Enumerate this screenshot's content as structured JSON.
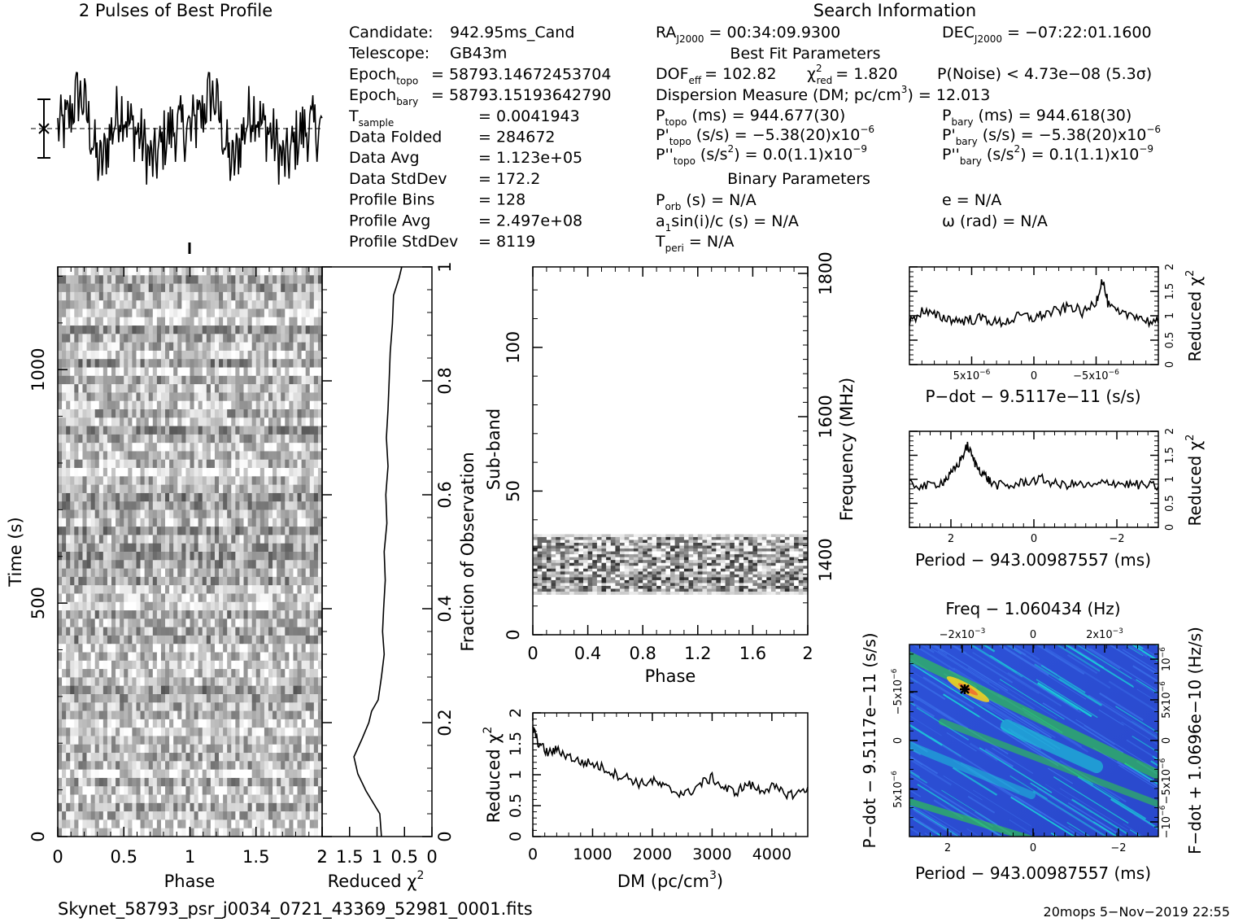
{
  "header": {
    "profile_title": "2 Pulses of Best Profile",
    "search_title": "Search Information"
  },
  "info_left": [
    {
      "label": "Candidate:",
      "value": "942.95ms_Cand"
    },
    {
      "label": "Telescope:",
      "value": "GB43m"
    },
    {
      "label": "Epoch",
      "sub": "topo",
      "value": "= 58793.14672453704"
    },
    {
      "label": "Epoch",
      "sub": "bary",
      "value": "= 58793.15193642790"
    },
    {
      "label": "T",
      "sub": "sample",
      "value": "=   0.0041943"
    },
    {
      "label": "Data Folded",
      "value": "=   284672"
    },
    {
      "label": "Data Avg",
      "value": "=   1.123e+05"
    },
    {
      "label": "Data StdDev",
      "value": "=   172.2"
    },
    {
      "label": "Profile Bins",
      "value": "=   128"
    },
    {
      "label": "Profile Avg",
      "value": "=   2.497e+08"
    },
    {
      "label": "Profile StdDev",
      "value": "=   8119"
    }
  ],
  "info_mid": {
    "ra": "RA",
    "ra_sub": "J2000",
    "ra_value": "= 00:34:09.9300",
    "best_fit": "Best Fit Parameters",
    "dof": "DOF",
    "dof_sub": "eff",
    "dof_value": "= 102.82",
    "chi": "χ",
    "chi_sup": "2",
    "chi_sub": "red",
    "chi_value": "= 1.820",
    "dm_line": "Dispersion Measure (DM; pc/cm",
    "dm_sup": "3",
    "dm_value": ") = 12.013",
    "ptopo": "P",
    "ptopo_sub": "topo",
    "ptopo_value": "(ms) =  944.677(30)",
    "pdtopo": "P'",
    "pdtopo_sub": "topo",
    "pdtopo_value": "(s/s) = −5.38(20)x10",
    "pdtopo_exp": "−6",
    "pddtopo": "P''",
    "pddtopo_sub": "topo",
    "pddtopo_value": "(s/s",
    "pddtopo_sup": "2",
    "pddtopo_value2": ") = 0.0(1.1)x10",
    "pddtopo_exp": "−9",
    "binary": "Binary Parameters",
    "porb": "P",
    "porb_sub": "orb",
    "porb_value": "(s) = N/A",
    "a1": "a",
    "a1_sub": "1",
    "a1_value": "sin(i)/c (s) = N/A",
    "tperi": "T",
    "tperi_sub": "peri",
    "tperi_value": "= N/A"
  },
  "info_right": {
    "dec": "DEC",
    "dec_sub": "J2000",
    "dec_value": "= −07:22:01.1600",
    "pnoise": "P(Noise) < 4.73e−08  (5.3σ)",
    "pbary": "P",
    "pbary_sub": "bary",
    "pbary_value": "(ms) =  944.618(30)",
    "pdbary": "P'",
    "pdbary_sub": "bary",
    "pdbary_value": "(s/s) = −5.38(20)x10",
    "pdbary_exp": "−6",
    "pddbary": "P''",
    "pddbary_sub": "bary",
    "pddbary_value": "(s/s",
    "pddbary_sup": "2",
    "pddbary_value2": ") =  0.1(1.1)x10",
    "pddbary_exp": "−9",
    "ecc": "e = N/A",
    "omega": "ω (rad) = N/A"
  },
  "footer": {
    "filename": "Skynet_58793_psr_j0034_0721_43369_52981_0001.fits",
    "stamp": "20mops   5−Nov−2019 22:55"
  },
  "chart_data": [
    {
      "name": "profile",
      "type": "line",
      "title": "2 Pulses of Best Profile",
      "x_range": [
        0,
        2
      ],
      "bins": 128,
      "pulses": 2
    },
    {
      "name": "time-phase",
      "type": "heatmap",
      "xlabel": "Phase",
      "ylabel": "Time (s)",
      "xlim": [
        0,
        2
      ],
      "ylim": [
        0,
        1220
      ],
      "xticks": [
        "0",
        "0.5",
        "1",
        "1.5",
        "2"
      ],
      "yticks": [
        "0",
        "500",
        "1000"
      ],
      "right_label": "Fraction of Observation",
      "right_ticks": [
        "0",
        "0.2",
        "0.4",
        "0.6",
        "0.8",
        "1"
      ]
    },
    {
      "name": "time-chi2",
      "type": "line",
      "xlabel": "Reduced χ",
      "xlabel_sup": "2",
      "xlim": [
        2,
        0
      ],
      "xticks": [
        "2",
        "1.5",
        "1",
        "0.5",
        "0"
      ],
      "fraction": [
        0.0,
        0.04,
        0.08,
        0.11,
        0.14,
        0.17,
        0.2,
        0.22,
        0.24,
        0.28,
        0.32,
        0.36,
        0.4,
        0.45,
        0.5,
        0.55,
        0.6,
        0.65,
        0.7,
        0.75,
        0.8,
        0.85,
        0.9,
        0.95,
        0.98,
        1.0
      ],
      "chi2": [
        0.92,
        0.95,
        1.2,
        1.35,
        1.42,
        1.28,
        1.15,
        1.1,
        0.98,
        0.92,
        0.87,
        0.9,
        0.88,
        0.85,
        0.87,
        0.82,
        0.84,
        0.8,
        0.83,
        0.8,
        0.78,
        0.76,
        0.72,
        0.7,
        0.6,
        0.55
      ]
    },
    {
      "name": "subband-phase",
      "type": "heatmap",
      "xlabel": "Phase",
      "ylabel": "Sub-band",
      "xlim": [
        0,
        2
      ],
      "ylim": [
        0,
        128
      ],
      "xticks": [
        "0",
        "0.4",
        "0.8",
        "1.2",
        "1.6",
        "2"
      ],
      "yticks": [
        "0",
        "50",
        "100"
      ],
      "right_label": "Frequency (MHz)",
      "right_ticks": [
        "1400",
        "1600",
        "1800"
      ],
      "band_subbands": [
        14,
        35
      ]
    },
    {
      "name": "dm-chi2",
      "type": "line",
      "xlabel": "DM (pc/cm",
      "xlabel_sup": "3",
      "xlabel_end": ")",
      "ylabel": "Reduced χ",
      "ylabel_sup": "2",
      "xlim": [
        0,
        4600
      ],
      "ylim": [
        0,
        2
      ],
      "xticks": [
        "0",
        "1000",
        "2000",
        "3000",
        "4000"
      ],
      "yticks": [
        "0",
        "0.5",
        "1",
        "1.5",
        "2"
      ],
      "x": [
        0,
        100,
        250,
        400,
        600,
        800,
        1000,
        1200,
        1400,
        1600,
        1800,
        2000,
        2200,
        2400,
        2600,
        2800,
        3000,
        3200,
        3400,
        3600,
        3800,
        4000,
        4200,
        4400,
        4600
      ],
      "y": [
        1.75,
        1.5,
        1.35,
        1.4,
        1.3,
        1.2,
        1.18,
        1.1,
        1.0,
        0.95,
        0.85,
        0.9,
        0.8,
        0.72,
        0.7,
        0.85,
        0.95,
        0.78,
        0.72,
        0.85,
        0.75,
        0.8,
        0.7,
        0.68,
        0.8
      ]
    },
    {
      "name": "pdot-chi2",
      "type": "line",
      "xlabel": "P−dot − 9.5117e−11 (s/s)",
      "ylabel": "Reduced χ",
      "ylabel_sup": "2",
      "xlim": [
        1e-05,
        -1e-05
      ],
      "ylim": [
        0,
        2
      ],
      "xticks": [
        "5x10",
        "0",
        "−5x10"
      ],
      "xtick_exp": "−6",
      "yticks": [
        "0",
        "0.5",
        "1",
        "1.5",
        "2"
      ],
      "x": [
        1e-05,
        9e-06,
        8e-06,
        7e-06,
        6e-06,
        5e-06,
        4e-06,
        3e-06,
        2e-06,
        1e-06,
        0,
        -1e-06,
        -2e-06,
        -3e-06,
        -4e-06,
        -5e-06,
        -5.5e-06,
        -6e-06,
        -7e-06,
        -8e-06,
        -9e-06,
        -1e-05
      ],
      "y": [
        0.85,
        1.1,
        1.0,
        0.95,
        0.9,
        0.92,
        0.95,
        0.85,
        0.9,
        1.0,
        0.95,
        1.05,
        1.1,
        1.2,
        1.05,
        1.3,
        1.75,
        1.2,
        1.0,
        1.05,
        0.9,
        0.85
      ]
    },
    {
      "name": "period-chi2",
      "type": "line",
      "xlabel": "Period − 943.00987557 (ms)",
      "ylabel": "Reduced χ",
      "ylabel_sup": "2",
      "xlim": [
        3,
        -3
      ],
      "ylim": [
        0,
        2
      ],
      "xticks": [
        "2",
        "0",
        "−2"
      ],
      "yticks": [
        "0",
        "0.5",
        "1",
        "1.5",
        "2"
      ],
      "x": [
        3,
        2.6,
        2.2,
        2.0,
        1.8,
        1.6,
        1.4,
        1.2,
        1.0,
        0.6,
        0.2,
        -0.2,
        -0.6,
        -1.0,
        -1.4,
        -1.8,
        -2.2,
        -2.6,
        -3
      ],
      "y": [
        0.9,
        0.85,
        0.95,
        1.1,
        1.35,
        1.7,
        1.3,
        1.1,
        0.9,
        0.85,
        0.95,
        1.0,
        0.88,
        0.9,
        0.85,
        0.95,
        0.9,
        0.88,
        0.85
      ]
    },
    {
      "name": "ppdot-plane",
      "type": "heatmap",
      "title": "Freq − 1.060434 (Hz)",
      "xlabel": "Period − 943.00987557 (ms)",
      "ylabel": "P−dot − 9.5117e−11 (s/s)",
      "right_label": "F−dot + 1.0696e−10 (Hz/s)",
      "xticks": [
        "2",
        "0",
        "−2"
      ],
      "top_ticks": [
        "−2x10",
        "0",
        "2x10"
      ],
      "top_tick_exp": "−3",
      "left_ticks": [
        "5x10",
        "0",
        "−5x10"
      ],
      "left_tick_exp": "−6",
      "right_ticks": [
        "−10",
        "−5x10",
        "0",
        "5x10",
        "10"
      ],
      "right_tick_exp": "−6",
      "best_fit_marker": {
        "period": 1.6,
        "pdot": -5.5e-06
      },
      "colors": {
        "low": "#2238c8",
        "mid": "#19d0d8",
        "high": "#30e030",
        "peak": "#f0d020"
      }
    }
  ]
}
